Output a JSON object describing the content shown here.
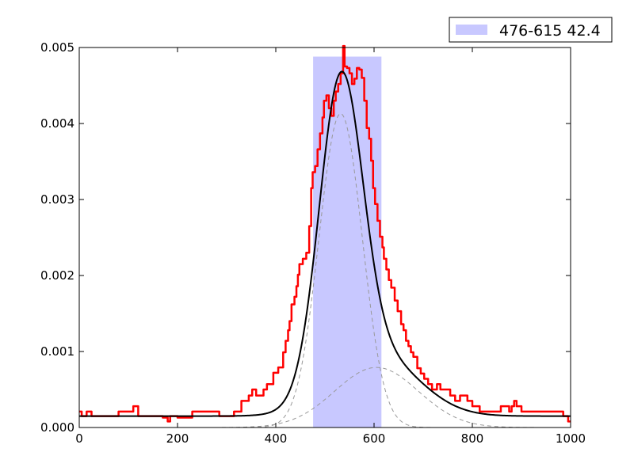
{
  "chart_data": {
    "type": "line",
    "title": "",
    "xlabel": "",
    "ylabel": "",
    "xlim": [
      0,
      1000
    ],
    "ylim": [
      0,
      0.005
    ],
    "grid": false,
    "legend_position": "top-right, above plot",
    "x_ticks": [
      "0",
      "200",
      "400",
      "600",
      "800",
      "1000"
    ],
    "y_ticks": [
      "0.000",
      "0.001",
      "0.002",
      "0.003",
      "0.004",
      "0.005"
    ],
    "x_tick_values": [
      0,
      200,
      400,
      600,
      800,
      1000
    ],
    "y_tick_values": [
      0,
      0.001,
      0.002,
      0.003,
      0.004,
      0.005
    ],
    "band": {
      "label": "476-615 42.4",
      "x_start": 476,
      "x_end": 615,
      "height": 0.00488,
      "color": "#c8c8ff"
    },
    "series": [
      {
        "color": "#ff0000",
        "style": "step",
        "points": [
          [
            0,
            0.00021
          ],
          [
            5,
            0.00015
          ],
          [
            15,
            0.00021
          ],
          [
            25,
            0.00015
          ],
          [
            80,
            0.00021
          ],
          [
            110,
            0.00028
          ],
          [
            120,
            0.00015
          ],
          [
            170,
            0.00013
          ],
          [
            180,
            8e-05
          ],
          [
            185,
            0.00015
          ],
          [
            200,
            0.00013
          ],
          [
            230,
            0.00021
          ],
          [
            260,
            0.00021
          ],
          [
            285,
            0.00015
          ],
          [
            300,
            0.00015
          ],
          [
            315,
            0.00021
          ],
          [
            330,
            0.00035
          ],
          [
            345,
            0.00042
          ],
          [
            352,
            0.0005
          ],
          [
            360,
            0.00042
          ],
          [
            375,
            0.0005
          ],
          [
            382,
            0.00057
          ],
          [
            395,
            0.00072
          ],
          [
            405,
            0.00079
          ],
          [
            415,
            0.00099
          ],
          [
            420,
            0.00114
          ],
          [
            425,
            0.00128
          ],
          [
            428,
            0.0014
          ],
          [
            432,
            0.00162
          ],
          [
            438,
            0.00172
          ],
          [
            442,
            0.00186
          ],
          [
            445,
            0.00201
          ],
          [
            448,
            0.00215
          ],
          [
            455,
            0.00222
          ],
          [
            462,
            0.0023
          ],
          [
            468,
            0.00265
          ],
          [
            472,
            0.00315
          ],
          [
            475,
            0.00336
          ],
          [
            480,
            0.00344
          ],
          [
            485,
            0.00366
          ],
          [
            490,
            0.00387
          ],
          [
            495,
            0.00408
          ],
          [
            498,
            0.0043
          ],
          [
            503,
            0.00437
          ],
          [
            508,
            0.0042
          ],
          [
            513,
            0.0041
          ],
          [
            518,
            0.0043
          ],
          [
            522,
            0.00442
          ],
          [
            527,
            0.00452
          ],
          [
            532,
            0.00466
          ],
          [
            537,
            0.00502
          ],
          [
            540,
            0.00475
          ],
          [
            545,
            0.00473
          ],
          [
            550,
            0.00466
          ],
          [
            555,
            0.00452
          ],
          [
            560,
            0.00459
          ],
          [
            565,
            0.00473
          ],
          [
            570,
            0.00471
          ],
          [
            575,
            0.0046
          ],
          [
            580,
            0.0043
          ],
          [
            585,
            0.00394
          ],
          [
            590,
            0.0038
          ],
          [
            594,
            0.00351
          ],
          [
            598,
            0.00315
          ],
          [
            602,
            0.00294
          ],
          [
            607,
            0.00272
          ],
          [
            612,
            0.00251
          ],
          [
            617,
            0.00237
          ],
          [
            620,
            0.00222
          ],
          [
            625,
            0.00208
          ],
          [
            630,
            0.00194
          ],
          [
            635,
            0.00184
          ],
          [
            642,
            0.00167
          ],
          [
            648,
            0.00153
          ],
          [
            655,
            0.00136
          ],
          [
            660,
            0.00128
          ],
          [
            665,
            0.00114
          ],
          [
            670,
            0.00107
          ],
          [
            675,
            0.00099
          ],
          [
            680,
            0.00093
          ],
          [
            688,
            0.00078
          ],
          [
            695,
            0.00071
          ],
          [
            702,
            0.00064
          ],
          [
            710,
            0.00057
          ],
          [
            718,
            0.0005
          ],
          [
            728,
            0.00057
          ],
          [
            735,
            0.0005
          ],
          [
            755,
            0.00042
          ],
          [
            765,
            0.00035
          ],
          [
            775,
            0.00042
          ],
          [
            790,
            0.00035
          ],
          [
            800,
            0.00028
          ],
          [
            815,
            0.00021
          ],
          [
            840,
            0.00021
          ],
          [
            858,
            0.00028
          ],
          [
            875,
            0.00021
          ],
          [
            880,
            0.00028
          ],
          [
            885,
            0.00035
          ],
          [
            890,
            0.00028
          ],
          [
            900,
            0.00021
          ],
          [
            955,
            0.00021
          ],
          [
            985,
            0.00015
          ],
          [
            995,
            8e-05
          ],
          [
            1000,
            8e-05
          ]
        ]
      },
      {
        "color": "#000000",
        "style": "line",
        "function": "gaussian_sum",
        "baseline": 0.00015,
        "components": [
          {
            "amplitude": 0.00398,
            "center": 532,
            "sigma": 44
          },
          {
            "amplitude": 0.00079,
            "center": 605,
            "sigma": 85
          }
        ]
      },
      {
        "color": "#999999",
        "style": "dashed",
        "function": "gaussian",
        "amplitude": 0.00413,
        "center": 532,
        "sigma": 44
      },
      {
        "color": "#999999",
        "style": "dashed",
        "function": "gaussian",
        "amplitude": 0.00079,
        "center": 605,
        "sigma": 85
      }
    ]
  }
}
